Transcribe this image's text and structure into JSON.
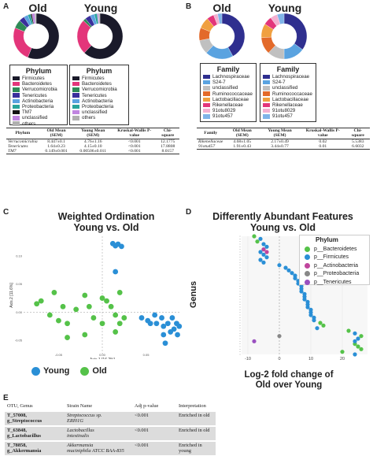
{
  "panelA": {
    "label": "A",
    "old_title": "Old",
    "young_title": "Young",
    "legend_title": "Phylum",
    "legend_items": [
      {
        "name": "Firmicutes",
        "color": "#1a1a2a"
      },
      {
        "name": "Bacteroidetes",
        "color": "#e3357a"
      },
      {
        "name": "Verrucomicrobia",
        "color": "#2e8b57"
      },
      {
        "name": "Tenericutes",
        "color": "#3a2f9c"
      },
      {
        "name": "Actinobacteria",
        "color": "#5aa3e0"
      },
      {
        "name": "Proteobacteria",
        "color": "#27a49a"
      },
      {
        "name": "TM7",
        "color": "#111111"
      },
      {
        "name": "unclassified",
        "color": "#c084e0"
      },
      {
        "name": "others",
        "color": "#b0b0b0"
      }
    ],
    "young_legend_items": [
      {
        "name": "Firmicutes",
        "color": "#1a1a2a"
      },
      {
        "name": "Bacteroidetes",
        "color": "#e3357a"
      },
      {
        "name": "Verrucomicrobia",
        "color": "#2e8b57"
      },
      {
        "name": "Tenericutes",
        "color": "#3a2f9c"
      },
      {
        "name": "Actinobacteria",
        "color": "#5aa3e0"
      },
      {
        "name": "Proteobacteria",
        "color": "#27a49a"
      },
      {
        "name": "unclassified",
        "color": "#c084e0"
      },
      {
        "name": "others",
        "color": "#b0b0b0"
      }
    ],
    "old_donut": [
      0.56,
      0.25,
      0.06,
      0.04,
      0.03,
      0.02,
      0.01,
      0.02,
      0.01
    ],
    "young_donut": [
      0.62,
      0.25,
      0.02,
      0.04,
      0.03,
      0.02,
      0.01,
      0.01
    ],
    "table": {
      "headers": [
        "Phylum",
        "Old Mean (SEM)",
        "Young Mean (SEM)",
        "Kruskal-Wallis P-value",
        "Chi-square"
      ],
      "rows": [
        [
          "Verrucomicrobia",
          "8.447±0.1",
          "4.76±1.16",
          "<0.001",
          "12.1775"
        ],
        [
          "Tenericutes",
          "1.64±0.23",
          "4.15±0.10",
          "<0.001",
          "17.8808"
        ],
        [
          "TM7",
          "0.149±0.001",
          "0.00506±0.011",
          "<0.001",
          "8.0157"
        ]
      ]
    }
  },
  "panelB": {
    "label": "B",
    "old_title": "Old",
    "young_title": "Young",
    "legend_title": "Family",
    "legend_items": [
      {
        "name": "Lachnospiraceae",
        "color": "#2f2f8f"
      },
      {
        "name": "S24-7",
        "color": "#5aa3e0"
      },
      {
        "name": "unclassified",
        "color": "#c0c0c0"
      },
      {
        "name": "Ruminococcaceae",
        "color": "#e36a2a"
      },
      {
        "name": "Lactobacillaceae",
        "color": "#f0a040"
      },
      {
        "name": "Rikenellaceae",
        "color": "#e3357a"
      },
      {
        "name": "91otu8029",
        "color": "#f3b0d0"
      },
      {
        "name": "91otu457",
        "color": "#7fb4e8"
      }
    ],
    "old_donut": [
      0.42,
      0.2,
      0.1,
      0.09,
      0.08,
      0.05,
      0.03,
      0.03
    ],
    "young_donut": [
      0.35,
      0.15,
      0.12,
      0.12,
      0.1,
      0.06,
      0.05,
      0.05
    ],
    "table": {
      "headers": [
        "Family",
        "Old Mean (SEM)",
        "Young Mean (SEM)",
        "Kruskal-Wallis P-value",
        "Chi-square"
      ],
      "rows": [
        [
          "Rikenellaceae",
          "4.68±1.05",
          "2.17±0.49",
          "0.02",
          "5.5383"
        ],
        [
          "91otu457",
          "1.91±0.43",
          "3.44±0.77",
          "0.01",
          "6.6032"
        ]
      ]
    }
  },
  "panelC": {
    "label": "C",
    "title_line1": "Weighted Ordination",
    "title_line2": "Young vs. Old",
    "legend": [
      {
        "name": "Young",
        "color": "#2a8fd6"
      },
      {
        "name": "Old",
        "color": "#55c249"
      }
    ]
  },
  "panelD": {
    "label": "D",
    "title_line1": "Differently Abundant Features",
    "title_line2": "Young vs. Old",
    "ylabel": "Genus",
    "xlabel_line1": "Log-2 fold change of",
    "xlabel_line2": "Old over Young",
    "legend_title": "Phylum",
    "legend": [
      {
        "name": "p__Bacteroidetes",
        "color": "#55c249"
      },
      {
        "name": "p__Firmicutes",
        "color": "#2a8fd6"
      },
      {
        "name": "p__Actinobacteria",
        "color": "#c0459d"
      },
      {
        "name": "p__Proteobacteria",
        "color": "#888888"
      },
      {
        "name": "p__Tenericutes",
        "color": "#9a50c0"
      }
    ]
  },
  "panelE": {
    "label": "E",
    "headers": [
      "OTU, Genus",
      "Strain Name",
      "Adj p-value",
      "Interpretation"
    ],
    "rows": [
      {
        "otu": "T_57008,",
        "genus": "g_Streptococcus",
        "strain1": "Streptococcus sp.",
        "strain2": "ERI01G",
        "p": "<0.001",
        "interp": "Enriched in old"
      },
      {
        "otu": "T_63848,",
        "genus": "g_Lactobacillus",
        "strain1": "Lactobacillus",
        "strain2": "intestinalis",
        "p": "<0.001",
        "interp": "Enriched in old"
      },
      {
        "otu": "T_78858,",
        "genus": "g_Akkermansia",
        "strain1": "Akkermansia",
        "strain2": "muciniphila ATCC BAA-835",
        "p": "<0.001",
        "interp": "Enriched in young"
      }
    ]
  },
  "chart_data": [
    {
      "type": "pie",
      "title": "Old",
      "categories": [
        "Firmicutes",
        "Bacteroidetes",
        "Verrucomicrobia",
        "Tenericutes",
        "Actinobacteria",
        "Proteobacteria",
        "TM7",
        "unclassified",
        "others"
      ],
      "values": [
        0.56,
        0.25,
        0.06,
        0.04,
        0.03,
        0.02,
        0.01,
        0.02,
        0.01
      ]
    },
    {
      "type": "pie",
      "title": "Young",
      "categories": [
        "Firmicutes",
        "Bacteroidetes",
        "Verrucomicrobia",
        "Tenericutes",
        "Actinobacteria",
        "Proteobacteria",
        "unclassified",
        "others"
      ],
      "values": [
        0.62,
        0.25,
        0.02,
        0.04,
        0.03,
        0.02,
        0.01,
        0.01
      ]
    },
    {
      "type": "pie",
      "title": "Old",
      "categories": [
        "Lachnospiraceae",
        "S24-7",
        "unclassified",
        "Ruminococcaceae",
        "Lactobacillaceae",
        "Rikenellaceae",
        "91otu8029",
        "91otu457"
      ],
      "values": [
        0.42,
        0.2,
        0.1,
        0.09,
        0.08,
        0.05,
        0.03,
        0.03
      ]
    },
    {
      "type": "pie",
      "title": "Young",
      "categories": [
        "Lachnospiraceae",
        "S24-7",
        "unclassified",
        "Ruminococcaceae",
        "Lactobacillaceae",
        "Rikenellaceae",
        "91otu8029",
        "91otu457"
      ],
      "values": [
        0.35,
        0.15,
        0.12,
        0.12,
        0.1,
        0.06,
        0.05,
        0.05
      ]
    },
    {
      "type": "scatter",
      "title": "Weighted Ordination Young vs. Old",
      "xlabel": "Axis.1 [16.2%]",
      "ylabel": "Axis.2 [11.6%]",
      "x_ticks": [
        "-0.05",
        "0.00",
        "0.05"
      ],
      "y_ticks": [
        "0.10",
        "0.05",
        "0.00",
        "-0.05"
      ],
      "xlim": [
        -0.09,
        0.09
      ],
      "ylim": [
        -0.075,
        0.135
      ],
      "series": [
        {
          "name": "Young",
          "points": [
            [
              0.012,
              0.122
            ],
            [
              0.015,
              0.118
            ],
            [
              0.018,
              0.121
            ],
            [
              0.022,
              0.117
            ],
            [
              0.015,
              0.072
            ],
            [
              0.045,
              -0.01
            ],
            [
              0.052,
              -0.015
            ],
            [
              0.055,
              -0.02
            ],
            [
              0.06,
              -0.005
            ],
            [
              0.062,
              -0.02
            ],
            [
              0.068,
              -0.01
            ],
            [
              0.07,
              -0.025
            ],
            [
              0.07,
              -0.04
            ],
            [
              0.075,
              -0.02
            ],
            [
              0.078,
              -0.035
            ],
            [
              0.08,
              -0.01
            ],
            [
              0.082,
              -0.03
            ],
            [
              0.085,
              -0.02
            ],
            [
              0.088,
              -0.025
            ],
            [
              0.086,
              -0.04
            ],
            [
              0.072,
              -0.055
            ]
          ]
        },
        {
          "name": "Old",
          "points": [
            [
              -0.075,
              0.015
            ],
            [
              -0.07,
              0.02
            ],
            [
              -0.06,
              -0.005
            ],
            [
              -0.055,
              0.035
            ],
            [
              -0.05,
              -0.015
            ],
            [
              -0.045,
              0.01
            ],
            [
              -0.04,
              -0.02
            ],
            [
              -0.03,
              0.005
            ],
            [
              -0.02,
              0.03
            ],
            [
              -0.015,
              0.01
            ],
            [
              -0.01,
              -0.01
            ],
            [
              0.0,
              0.025
            ],
            [
              0.005,
              0.02
            ],
            [
              0.01,
              0.01
            ],
            [
              0.015,
              -0.005
            ],
            [
              0.015,
              -0.035
            ],
            [
              0.02,
              0.035
            ],
            [
              0.025,
              -0.01
            ],
            [
              -0.04,
              -0.045
            ],
            [
              -0.02,
              -0.04
            ],
            [
              0.0,
              -0.02
            ],
            [
              0.02,
              -0.02
            ]
          ]
        }
      ]
    },
    {
      "type": "scatter",
      "title": "Differently Abundant Features Young vs. Old",
      "xlabel": "Log-2 fold change of Old over Young",
      "ylabel": "Genus",
      "x_ticks": [
        "-10",
        "0",
        "10",
        "20"
      ],
      "xlim": [
        -12,
        28
      ],
      "series": [
        {
          "name": "p__Bacteroidetes",
          "points": [
            [
              -8,
              0
            ],
            [
              -7,
              2
            ],
            [
              13,
              33
            ],
            [
              14,
              34
            ],
            [
              22,
              36
            ],
            [
              26,
              38
            ],
            [
              24,
              41
            ],
            [
              25,
              42
            ],
            [
              26,
              43
            ],
            [
              20,
              44
            ]
          ]
        },
        {
          "name": "p__Firmicutes",
          "points": [
            [
              -6,
              1
            ],
            [
              -5,
              3
            ],
            [
              -4,
              4
            ],
            [
              -5,
              5
            ],
            [
              -6,
              6
            ],
            [
              -5,
              7
            ],
            [
              -4,
              8
            ],
            [
              -6,
              9
            ],
            [
              -5,
              10
            ],
            [
              0,
              11
            ],
            [
              2,
              12
            ],
            [
              3,
              13
            ],
            [
              4,
              14
            ],
            [
              5,
              15
            ],
            [
              5,
              16
            ],
            [
              6,
              17
            ],
            [
              6,
              18
            ],
            [
              7,
              19
            ],
            [
              7,
              20
            ],
            [
              7,
              21
            ],
            [
              8,
              22
            ],
            [
              8,
              23
            ],
            [
              8,
              24
            ],
            [
              9,
              25
            ],
            [
              9,
              26
            ],
            [
              9,
              27
            ],
            [
              10,
              28
            ],
            [
              10,
              29
            ],
            [
              10,
              30
            ],
            [
              11,
              31
            ],
            [
              11,
              32
            ],
            [
              12,
              35
            ],
            [
              24,
              37
            ],
            [
              25,
              39
            ],
            [
              24,
              40
            ],
            [
              24,
              45
            ]
          ]
        },
        {
          "name": "p__Actinobacteria",
          "points": [
            [
              -5,
              5
            ],
            [
              -4,
              6
            ]
          ]
        },
        {
          "name": "p__Proteobacteria",
          "points": [
            [
              0,
              38
            ]
          ]
        },
        {
          "name": "p__Tenericutes",
          "points": [
            [
              -8,
              40
            ]
          ]
        }
      ]
    }
  ]
}
